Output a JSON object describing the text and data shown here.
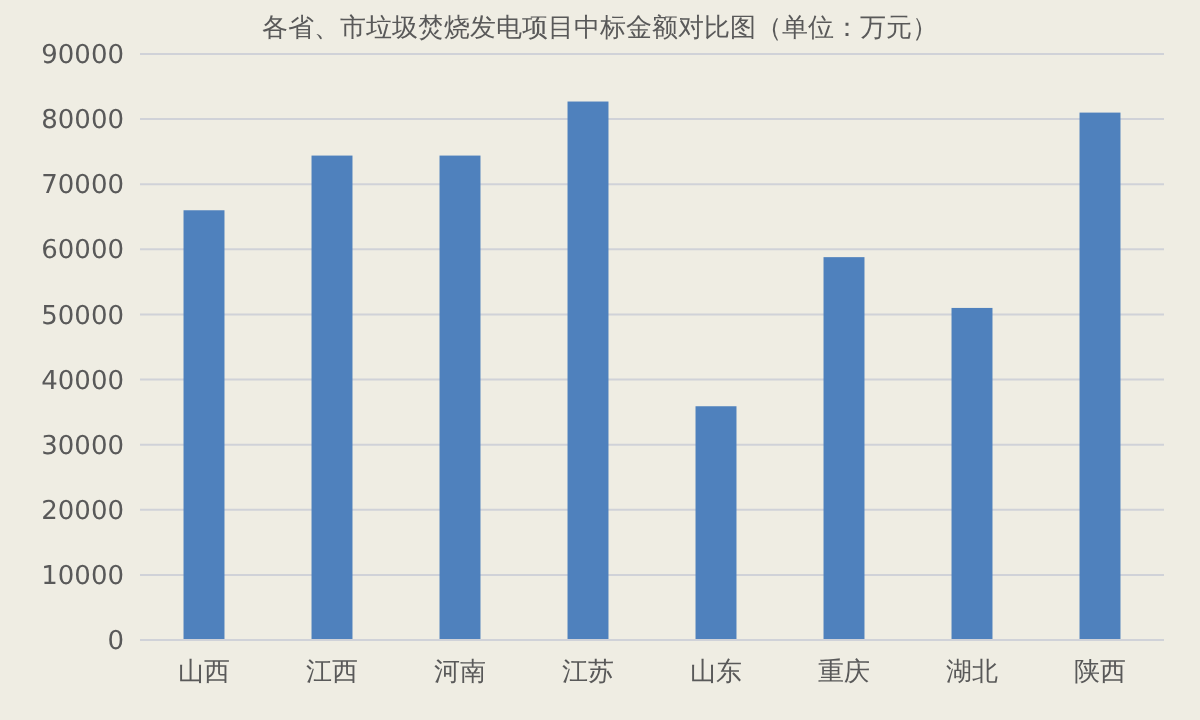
{
  "chart_data": {
    "type": "bar",
    "title": "各省、市垃圾焚烧发电项目中标金额对比图（单位：万元）",
    "categories": [
      "山西",
      "江西",
      "河南",
      "江苏",
      "山东",
      "重庆",
      "湖北",
      "陕西"
    ],
    "values": [
      66000,
      74400,
      74400,
      82700,
      35900,
      58800,
      51000,
      81000
    ],
    "color": "#4f81bd",
    "ylim": [
      0,
      90000
    ],
    "yticks": [
      0,
      10000,
      20000,
      30000,
      40000,
      50000,
      60000,
      70000,
      80000,
      90000
    ],
    "grid": "y"
  }
}
